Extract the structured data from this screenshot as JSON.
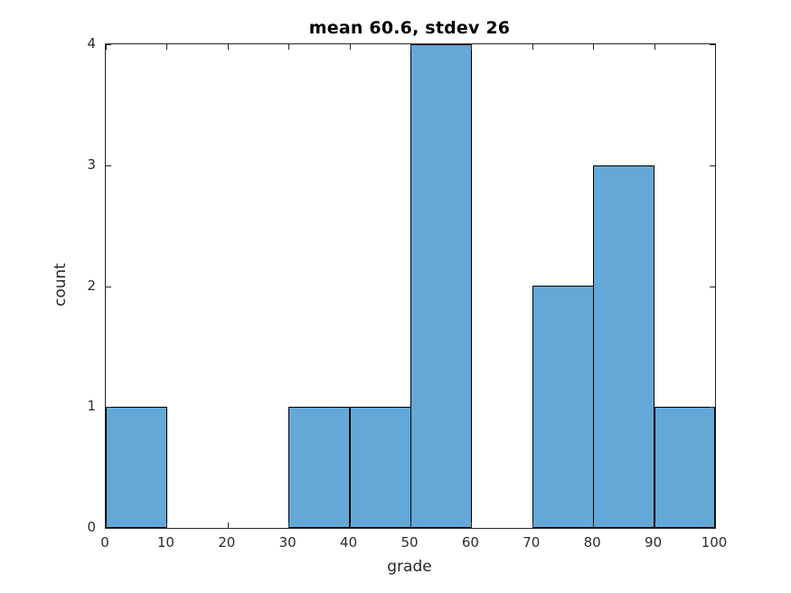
{
  "figure": {
    "background_color": "#ffffff"
  },
  "chart_data": {
    "type": "bar",
    "subtype": "histogram",
    "title": "mean 60.6, stdev 26",
    "xlabel": "grade",
    "ylabel": "count",
    "bin_edges": [
      0,
      10,
      20,
      30,
      40,
      50,
      60,
      70,
      80,
      90,
      100
    ],
    "counts": [
      1,
      0,
      0,
      1,
      1,
      4,
      0,
      2,
      3,
      1
    ],
    "xlim": [
      0,
      100
    ],
    "ylim": [
      0,
      4
    ],
    "xticks": [
      0,
      10,
      20,
      30,
      40,
      50,
      60,
      70,
      80,
      90,
      100
    ],
    "yticks": [
      0,
      1,
      2,
      3,
      4
    ],
    "grid": false,
    "legend": null,
    "box": true,
    "tick_direction": "in",
    "bar_color": "#64a8d8",
    "bar_edge_color": "#000000",
    "axis_color": "#262626",
    "title_color": "#000000",
    "tick_label_color": "#2b2b2b"
  }
}
